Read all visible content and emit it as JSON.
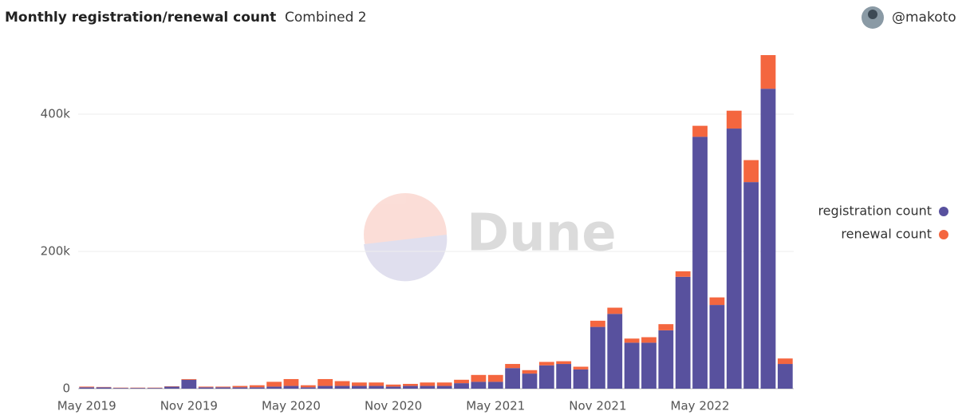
{
  "chart_data": {
    "type": "bar",
    "stacked": true,
    "title": "Monthly registration/renewal count",
    "subtitle": "Combined 2",
    "author": "@makoto",
    "watermark": "Dune",
    "categories": [
      "May 2019",
      null,
      null,
      null,
      null,
      null,
      "Nov 2019",
      null,
      null,
      null,
      null,
      null,
      "May 2020",
      null,
      null,
      null,
      null,
      null,
      "Nov 2020",
      null,
      null,
      null,
      null,
      null,
      "May 2021",
      null,
      null,
      null,
      null,
      null,
      "Nov 2021",
      null,
      null,
      null,
      null,
      null,
      "May 2022",
      null,
      null,
      null,
      null,
      null
    ],
    "series": [
      {
        "name": "registration count",
        "color": "#58519e",
        "values": [
          2000,
          2000,
          1000,
          1000,
          1000,
          3000,
          13000,
          2000,
          2000,
          2000,
          2000,
          3000,
          4000,
          2000,
          4000,
          4000,
          4000,
          4000,
          3000,
          4000,
          4000,
          4000,
          8000,
          10000,
          10000,
          30000,
          22000,
          34000,
          36000,
          28000,
          90000,
          109000,
          67000,
          67000,
          85000,
          163000,
          367000,
          122000,
          379000,
          301000,
          437000,
          36000
        ]
      },
      {
        "name": "renewal count",
        "color": "#f4663f",
        "values": [
          1000,
          500,
          500,
          500,
          500,
          500,
          1000,
          1000,
          1000,
          2000,
          3000,
          7000,
          10000,
          3000,
          10000,
          7000,
          5000,
          5000,
          3000,
          3000,
          5000,
          5000,
          5000,
          10000,
          10000,
          6000,
          5000,
          5000,
          4000,
          4000,
          9000,
          9000,
          6000,
          8000,
          9000,
          8000,
          16000,
          11000,
          26000,
          32000,
          49000,
          8000
        ]
      }
    ],
    "ylim": [
      0,
      500000
    ],
    "yticks": [
      0,
      {
        "value": 200000,
        "label": "200k"
      },
      {
        "value": 400000,
        "label": "400k"
      }
    ],
    "grid": true,
    "legend": "right"
  }
}
